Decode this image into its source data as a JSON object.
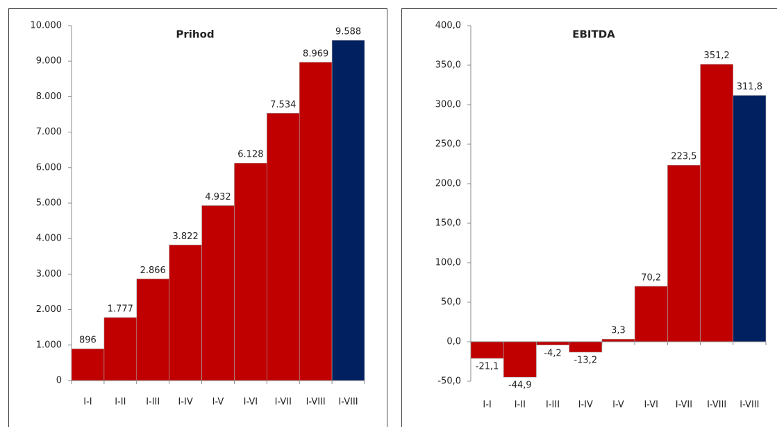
{
  "chart_data": [
    {
      "type": "bar",
      "title": "Prihod",
      "categories": [
        "I-I",
        "I-II",
        "I-III",
        "I-IV",
        "I-V",
        "I-VI",
        "I-VII",
        "I-VIII",
        "I-VIII"
      ],
      "values": [
        896,
        1777,
        2866,
        3822,
        4932,
        6128,
        7534,
        8969,
        9588
      ],
      "value_labels": [
        "896",
        "1.777",
        "2.866",
        "3.822",
        "4.932",
        "6.128",
        "7.534",
        "8.969",
        "9.588"
      ],
      "colors": [
        "#c00000",
        "#c00000",
        "#c00000",
        "#c00000",
        "#c00000",
        "#c00000",
        "#c00000",
        "#c00000",
        "#002060"
      ],
      "ylim": [
        0,
        10000
      ],
      "yticks": [
        0,
        {
          "value": 1000,
          "label": "1.000"
        },
        {
          "value": 2000,
          "label": "2.000"
        },
        {
          "value": 3000,
          "label": "3.000"
        },
        {
          "value": 4000,
          "label": "4.000"
        },
        {
          "value": 5000,
          "label": "5.000"
        },
        {
          "value": 6000,
          "label": "6.000"
        },
        {
          "value": 7000,
          "label": "7.000"
        },
        {
          "value": 8000,
          "label": "8.000"
        },
        {
          "value": 9000,
          "label": "9.000"
        },
        {
          "value": 10000,
          "label": "10.000"
        }
      ],
      "grid": false
    },
    {
      "type": "bar",
      "title": "EBITDA",
      "categories": [
        "I-I",
        "I-II",
        "I-III",
        "I-IV",
        "I-V",
        "I-VI",
        "I-VII",
        "I-VIII",
        "I-VIII"
      ],
      "values": [
        -21.1,
        -44.9,
        -4.2,
        -13.2,
        3.3,
        70.2,
        223.5,
        351.2,
        311.8
      ],
      "value_labels": [
        "-21,1",
        "-44,9",
        "-4,2",
        "-13,2",
        "3,3",
        "70,2",
        "223,5",
        "351,2",
        "311,8"
      ],
      "colors": [
        "#c00000",
        "#c00000",
        "#c00000",
        "#c00000",
        "#c00000",
        "#c00000",
        "#c00000",
        "#c00000",
        "#002060"
      ],
      "ylim": [
        -50,
        400
      ],
      "yticks": [
        {
          "value": -50,
          "label": "-50,0"
        },
        {
          "value": 0,
          "label": "0,0"
        },
        {
          "value": 50,
          "label": "50,0"
        },
        {
          "value": 100,
          "label": "100,0"
        },
        {
          "value": 150,
          "label": "150,0"
        },
        {
          "value": 200,
          "label": "200,0"
        },
        {
          "value": 250,
          "label": "250,0"
        },
        {
          "value": 300,
          "label": "300,0"
        },
        {
          "value": 350,
          "label": "350,0"
        },
        {
          "value": 400,
          "label": "400,0"
        }
      ],
      "grid": false
    }
  ]
}
